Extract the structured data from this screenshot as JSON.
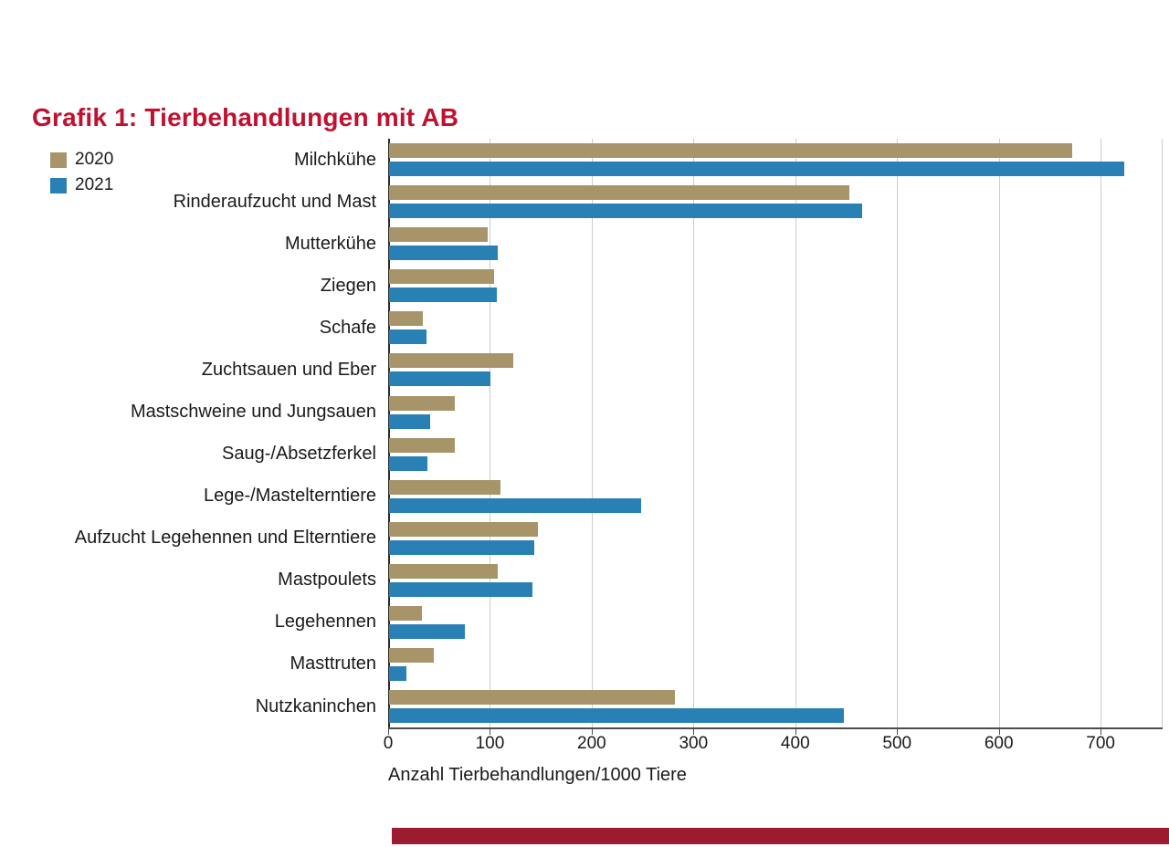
{
  "page": {
    "title": "Grafik 1: Tierbehandlungen mit AB",
    "title_color": "#C11131",
    "footer_bar_color": "#9D1B31"
  },
  "legend": [
    {
      "label": "2020",
      "color": "#A79469"
    },
    {
      "label": "2021",
      "color": "#2980B5"
    }
  ],
  "chart_data": {
    "type": "bar",
    "orientation": "horizontal",
    "title": "Grafik 1: Tierbehandlungen mit AB",
    "xlabel": "Anzahl Tierbehandlungen/1000 Tiere",
    "xlim": [
      0,
      760
    ],
    "xticks": [
      0,
      100,
      200,
      300,
      400,
      500,
      600,
      700
    ],
    "grid": true,
    "legend_position": "top-left",
    "gridline_color": "#cccccc",
    "categories": [
      "Milchkühe",
      "Rinderaufzucht und Mast",
      "Mutterkühe",
      "Ziegen",
      "Schafe",
      "Zuchtsauen und Eber",
      "Mastschweine und Jungsauen",
      "Saug-/Absetzferkel",
      "Lege-/Mastelterntiere",
      "Aufzucht Legehennen und Elterntiere",
      "Mastpoulets",
      "Legehennen",
      "Masttruten",
      "Nutzkaninchen"
    ],
    "series": [
      {
        "name": "2020",
        "color": "#A79469",
        "values": [
          672,
          453,
          97,
          103,
          33,
          122,
          65,
          65,
          110,
          146,
          107,
          32,
          44,
          281
        ]
      },
      {
        "name": "2021",
        "color": "#2980B5",
        "values": [
          723,
          465,
          107,
          106,
          37,
          100,
          40,
          38,
          248,
          143,
          141,
          75,
          17,
          447
        ]
      }
    ]
  }
}
